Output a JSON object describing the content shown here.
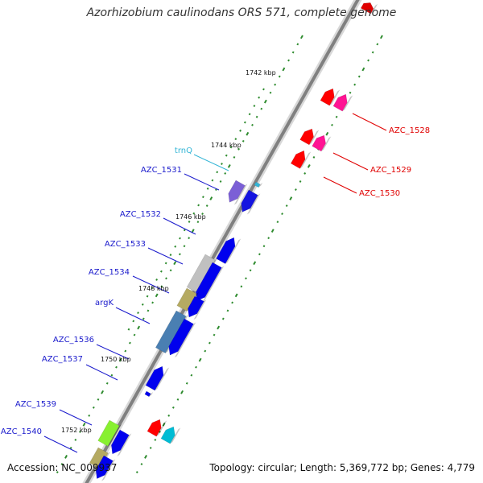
{
  "title": "Azorhizobium caulinodans ORS 571, complete genome",
  "footer": {
    "accession": "Accession: NC_009937",
    "topology": "Topology: circular; Length: 5,369,772 bp; Genes: 4,779"
  },
  "colors": {
    "backbone": "#808080",
    "tick": "#2e8b2e",
    "reverse_gene_label": "#e00000",
    "forward_gene_label": "#1a1acc",
    "trna_label": "#33b5d6"
  },
  "kbp_labels": [
    "1742 kbp",
    "1744 kbp",
    "1746 kbp",
    "1748 kbp",
    "1750 kbp",
    "1752 kbp"
  ],
  "gene_labels": [
    {
      "text": "AZC_1528",
      "strand": "reverse"
    },
    {
      "text": "AZC_1529",
      "strand": "reverse"
    },
    {
      "text": "AZC_1530",
      "strand": "reverse"
    },
    {
      "text": "trnQ",
      "strand": "trna"
    },
    {
      "text": "AZC_1531",
      "strand": "forward"
    },
    {
      "text": "AZC_1532",
      "strand": "forward"
    },
    {
      "text": "AZC_1533",
      "strand": "forward"
    },
    {
      "text": "AZC_1534",
      "strand": "forward"
    },
    {
      "text": "argK",
      "strand": "forward"
    },
    {
      "text": "AZC_1536",
      "strand": "forward"
    },
    {
      "text": "AZC_1537",
      "strand": "forward"
    },
    {
      "text": "AZC_1539",
      "strand": "forward"
    },
    {
      "text": "AZC_1540",
      "strand": "forward"
    }
  ]
}
